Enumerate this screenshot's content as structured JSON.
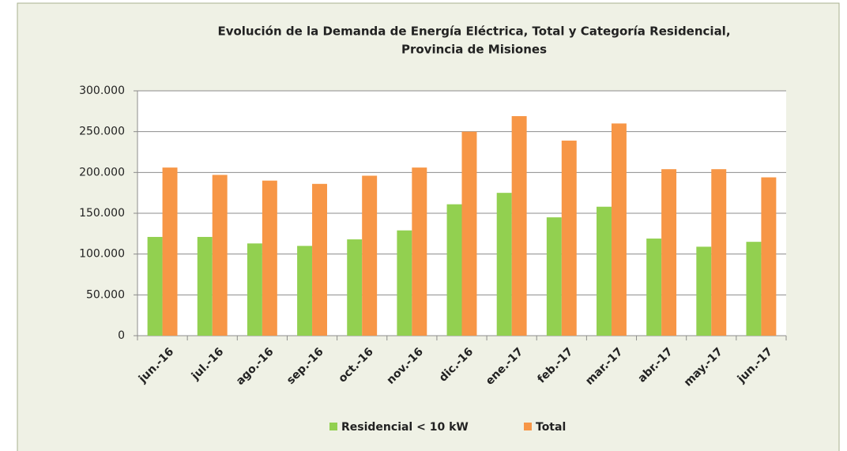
{
  "chart_data": {
    "type": "bar",
    "title": "Evolución de la Demanda de Energía Eléctrica, Total  y Categoría  Residencial,",
    "subtitle": "Provincia de Misiones",
    "categories": [
      "jun.-16",
      "jul.-16",
      "ago.-16",
      "sep.-16",
      "oct.-16",
      "nov.-16",
      "dic.-16",
      "ene.-17",
      "feb.-17",
      "mar.-17",
      "abr.-17",
      "may.-17",
      "jun.-17"
    ],
    "series": [
      {
        "name": "Residencial < 10 kW",
        "color": "#92d050",
        "values": [
          121000,
          121000,
          113000,
          110000,
          118000,
          129000,
          161000,
          175000,
          145000,
          158000,
          119000,
          109000,
          115000
        ]
      },
      {
        "name": "Total",
        "color": "#f79646",
        "values": [
          206000,
          197000,
          190000,
          186000,
          196000,
          206000,
          250000,
          269000,
          239000,
          260000,
          204000,
          204000,
          194000
        ]
      }
    ],
    "ylim": [
      0,
      300000
    ],
    "yticks": [
      0,
      {
        "value": 50000,
        "label": "50.000"
      },
      {
        "value": 100000,
        "label": "100.000"
      },
      {
        "value": 150000,
        "label": "150.000"
      },
      {
        "value": 200000,
        "label": "200.000"
      },
      {
        "value": 250000,
        "label": "250.000"
      },
      {
        "value": 300000,
        "label": "300.000"
      }
    ],
    "grid": true,
    "legend": "bottom"
  }
}
